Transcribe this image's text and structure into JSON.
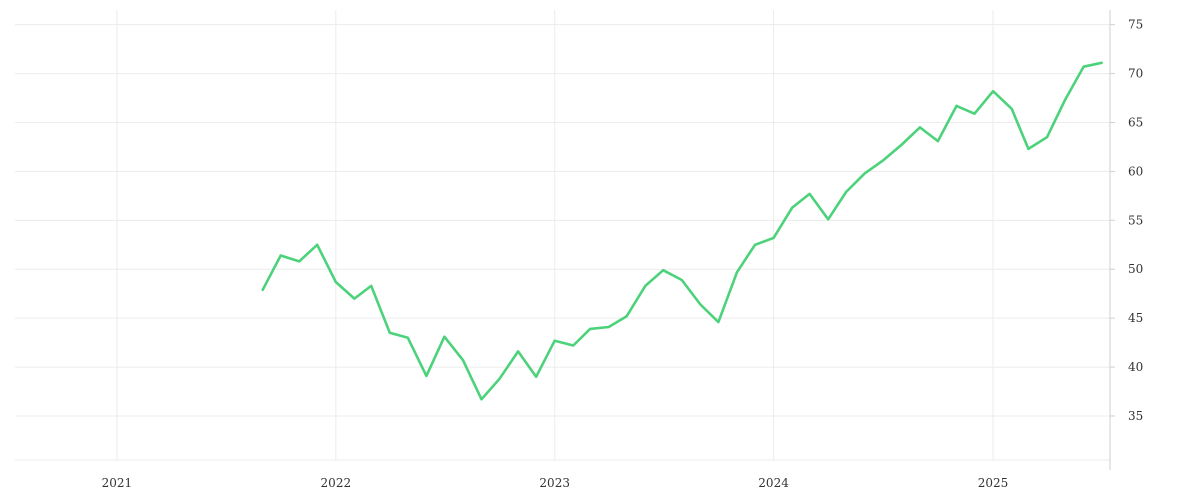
{
  "chart_data": {
    "type": "line",
    "title": "",
    "xlabel": "",
    "ylabel": "",
    "grid": true,
    "legend": "none",
    "line_color": "#4cd27a",
    "x_ticks": [
      "2021",
      "2022",
      "2023",
      "2024",
      "2025"
    ],
    "y_ticks": [
      35,
      40,
      45,
      50,
      55,
      60,
      65,
      70,
      75
    ],
    "xlim": [
      "2020-07-15",
      "2025-07-15"
    ],
    "ylim": [
      30.5,
      76.5
    ],
    "series": [
      {
        "x": [
          "2021-09-01",
          "2021-10-01",
          "2021-11-01",
          "2021-12-01",
          "2022-01-01",
          "2022-02-01",
          "2022-03-01",
          "2022-04-01",
          "2022-05-01",
          "2022-06-01",
          "2022-07-01",
          "2022-08-01",
          "2022-09-01",
          "2022-10-01",
          "2022-11-01",
          "2022-12-01",
          "2023-01-01",
          "2023-02-01",
          "2023-03-01",
          "2023-04-01",
          "2023-05-01",
          "2023-06-01",
          "2023-07-01",
          "2023-08-01",
          "2023-09-01",
          "2023-10-01",
          "2023-11-01",
          "2023-12-01",
          "2024-01-01",
          "2024-02-01",
          "2024-03-01",
          "2024-04-01",
          "2024-05-01",
          "2024-06-01",
          "2024-07-01",
          "2024-08-01",
          "2024-09-01",
          "2024-10-01",
          "2024-11-01",
          "2024-12-01",
          "2025-01-01",
          "2025-02-01",
          "2025-03-01",
          "2025-04-01",
          "2025-05-01",
          "2025-06-01",
          "2025-07-01"
        ],
        "y": [
          47.9,
          51.4,
          50.8,
          52.5,
          48.7,
          47.0,
          48.3,
          43.5,
          43.0,
          39.1,
          43.1,
          40.7,
          36.7,
          38.8,
          41.6,
          39.0,
          42.7,
          42.2,
          43.9,
          44.1,
          45.2,
          48.3,
          49.9,
          48.9,
          46.4,
          44.6,
          49.7,
          52.5,
          53.2,
          56.3,
          57.7,
          55.1,
          57.9,
          59.8,
          61.1,
          62.7,
          64.5,
          63.1,
          66.7,
          65.9,
          68.2,
          66.4,
          62.3,
          63.5,
          67.3,
          70.7,
          71.1
        ]
      }
    ]
  }
}
